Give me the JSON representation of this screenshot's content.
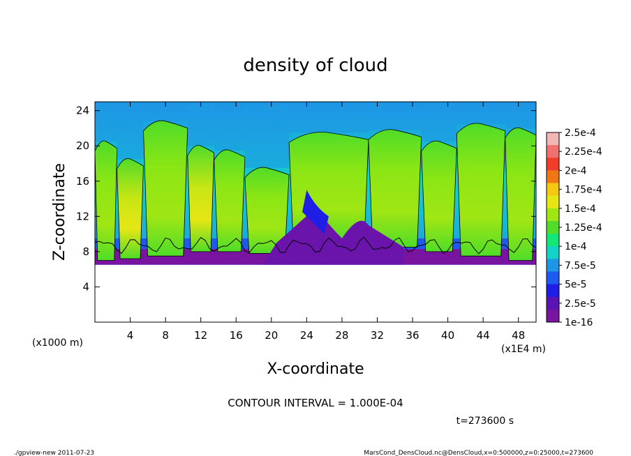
{
  "chart_data": {
    "type": "heatmap",
    "title": "density of cloud",
    "xlabel": "X-coordinate",
    "ylabel": "Z-coordinate",
    "x_unit_label": "(x1E4 m)",
    "y_unit_label": "(x1000 m)",
    "xlim": [
      0,
      50
    ],
    "ylim": [
      0,
      25
    ],
    "x_ticks": [
      4,
      8,
      12,
      16,
      20,
      24,
      28,
      32,
      36,
      40,
      44,
      48
    ],
    "y_ticks": [
      4,
      8,
      12,
      16,
      20,
      24
    ],
    "colorbar": {
      "labels": [
        "2.5e-4",
        "2.25e-4",
        "2e-4",
        "1.75e-4",
        "1.5e-4",
        "1.25e-4",
        "1e-4",
        "7.5e-5",
        "5e-5",
        "2.5e-5",
        "1e-16"
      ],
      "colors": [
        "#f2b6b6",
        "#f07070",
        "#f03c28",
        "#f07814",
        "#f5c814",
        "#e6e614",
        "#a0e614",
        "#50dc28",
        "#14e678",
        "#14d2c8",
        "#1e96e6",
        "#1e5af0",
        "#1e1ee6",
        "#5a14b4",
        "#7814a0"
      ]
    },
    "columns": [
      {
        "x0": 0,
        "x1": 2.5,
        "base": 7.0,
        "top": 20.5,
        "cap": 24.5,
        "level": "green"
      },
      {
        "x0": 2.5,
        "x1": 5.5,
        "base": 7.2,
        "top": 18.5,
        "cap": 24.5,
        "level": "yellowgreen"
      },
      {
        "x0": 5.5,
        "x1": 10.5,
        "base": 7.5,
        "top": 22.8,
        "cap": 25,
        "level": "green"
      },
      {
        "x0": 10.5,
        "x1": 13.5,
        "base": 8.0,
        "top": 20.0,
        "cap": 24.0,
        "level": "yellowgreen"
      },
      {
        "x0": 13.5,
        "x1": 17.0,
        "base": 8.0,
        "top": 19.5,
        "cap": 25,
        "level": "green"
      },
      {
        "x0": 17.0,
        "x1": 22.0,
        "base": 7.8,
        "top": 17.5,
        "cap": 24.0,
        "level": "green"
      },
      {
        "x0": 22.0,
        "x1": 31.0,
        "base": 9.0,
        "top": 21.5,
        "cap": 25,
        "level": "green"
      },
      {
        "x0": 31.0,
        "x1": 37.0,
        "base": 8.5,
        "top": 21.8,
        "cap": 25,
        "level": "green"
      },
      {
        "x0": 37.0,
        "x1": 41.0,
        "base": 8.0,
        "top": 20.5,
        "cap": 24.5,
        "level": "green"
      },
      {
        "x0": 41.0,
        "x1": 46.5,
        "base": 7.5,
        "top": 22.5,
        "cap": 25,
        "level": "green"
      },
      {
        "x0": 46.5,
        "x1": 50.0,
        "base": 7.0,
        "top": 22.0,
        "cap": 25,
        "level": "green"
      }
    ],
    "cloud_base_z": 6.5,
    "low_density_region": {
      "x0": 19,
      "x1": 35,
      "z0": 6.5,
      "z1": 13,
      "level": "1e-16"
    }
  },
  "annotations": {
    "contour_interval": "CONTOUR INTERVAL = 1.000E-04",
    "time": "t=273600 s",
    "footer_left": "./gpview-new   2011-07-23",
    "footer_right": "MarsCond_DensCloud.nc@DensCloud,x=0:500000,z=0:25000,t=273600"
  }
}
